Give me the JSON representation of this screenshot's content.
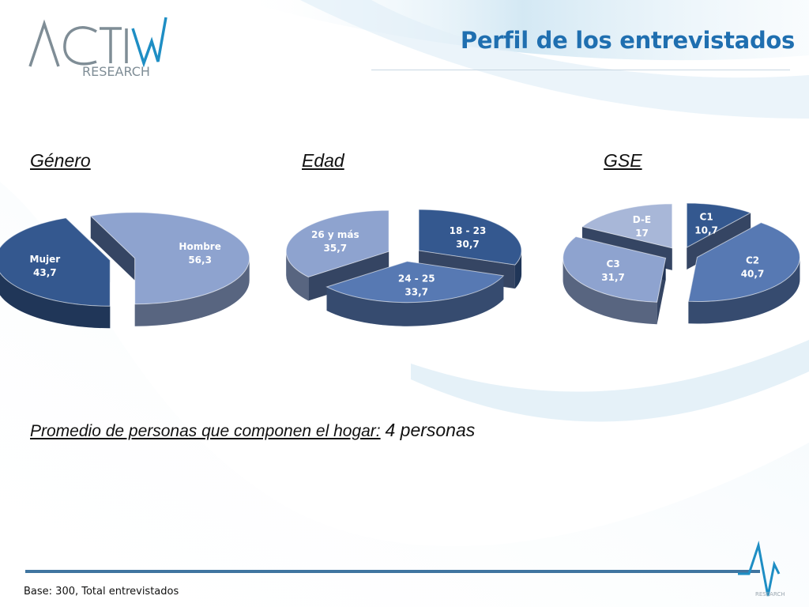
{
  "brand": {
    "line1": "ACTIVA",
    "line2": "RESEARCH"
  },
  "title": "Perfil de los entrevistados",
  "colors": {
    "accent": "#1f6fb0",
    "slice_light": "#8ea3cf",
    "slice_mid": "#5779b3",
    "slice_dark": "#34588f",
    "slice_pale": "#a8b7d8",
    "side_dark": "#1f3152"
  },
  "chart_data": [
    {
      "type": "pie",
      "title": "Género",
      "slices": [
        {
          "label": "Hombre",
          "value": 56.3,
          "value_text": "56,3"
        },
        {
          "label": "Mujer",
          "value": 43.7,
          "value_text": "43,7"
        }
      ]
    },
    {
      "type": "pie",
      "title": "Edad",
      "slices": [
        {
          "label": "18 - 23",
          "value": 30.7,
          "value_text": "30,7"
        },
        {
          "label": "24 - 25",
          "value": 33.7,
          "value_text": "33,7"
        },
        {
          "label": "26 y más",
          "value": 35.7,
          "value_text": "35,7"
        }
      ]
    },
    {
      "type": "pie",
      "title": "GSE",
      "slices": [
        {
          "label": "C1",
          "value": 10.7,
          "value_text": "10,7"
        },
        {
          "label": "C2",
          "value": 40.7,
          "value_text": "40,7"
        },
        {
          "label": "C3",
          "value": 31.7,
          "value_text": "31,7"
        },
        {
          "label": "D-E",
          "value": 17,
          "value_text": "17"
        }
      ]
    }
  ],
  "promedio": {
    "question": "Promedio de personas que componen el hogar:",
    "value": "4 personas"
  },
  "footer": {
    "base": "Base: 300, Total entrevistados",
    "logo_text": "RESEARCH"
  }
}
